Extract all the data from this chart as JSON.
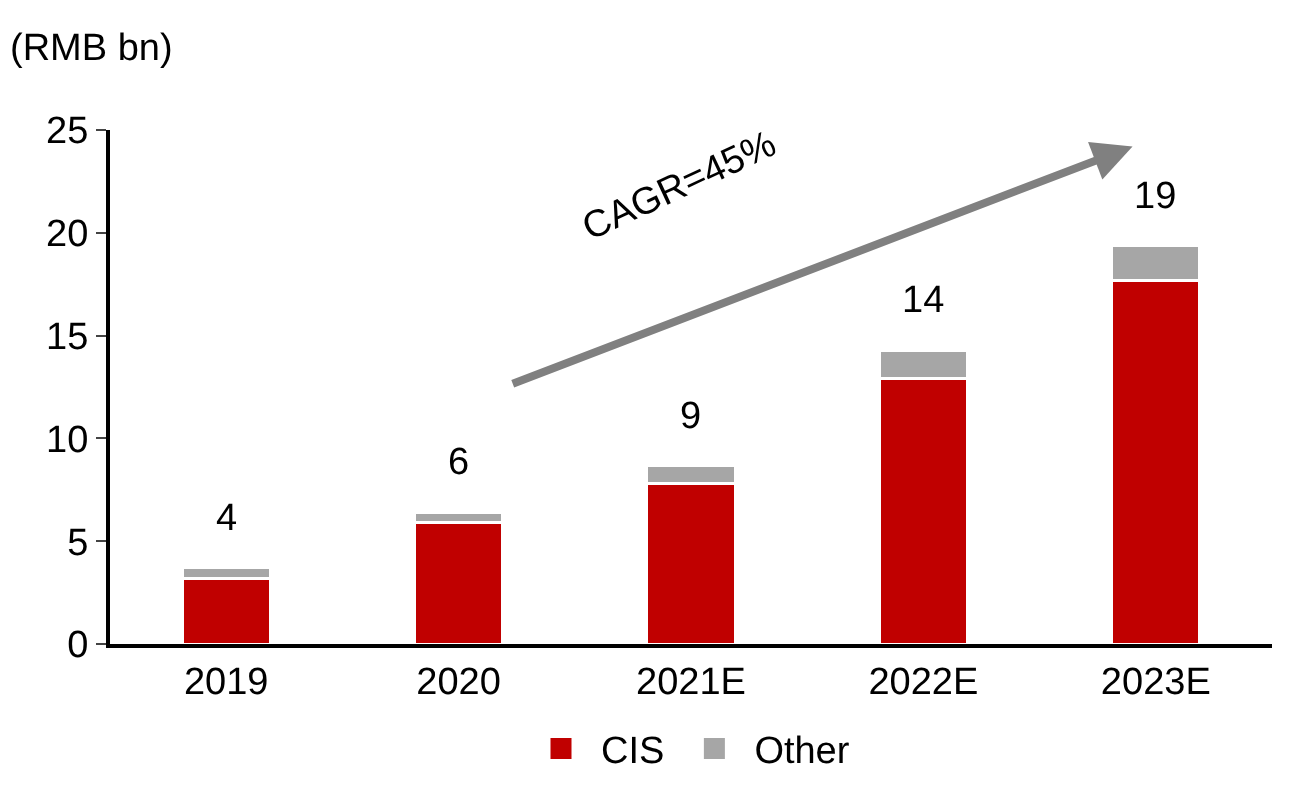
{
  "chart_data": {
    "type": "bar",
    "stacked": true,
    "ylabel": "(RMB bn)",
    "categories": [
      "2019",
      "2020",
      "2021E",
      "2022E",
      "2023E"
    ],
    "series": [
      {
        "name": "CIS",
        "color": "#c00000",
        "values": [
          3.2,
          5.9,
          7.8,
          12.9,
          17.7
        ]
      },
      {
        "name": "Other",
        "color": "#a6a6a6",
        "values": [
          0.5,
          0.5,
          0.9,
          1.4,
          1.7
        ]
      }
    ],
    "totals": [
      "4",
      "6",
      "9",
      "14",
      "19"
    ],
    "ylim": [
      0,
      25
    ],
    "yticks": [
      0,
      5,
      10,
      15,
      20,
      25
    ],
    "legend": "bottom",
    "annotations": [
      "CAGR=45%"
    ]
  }
}
